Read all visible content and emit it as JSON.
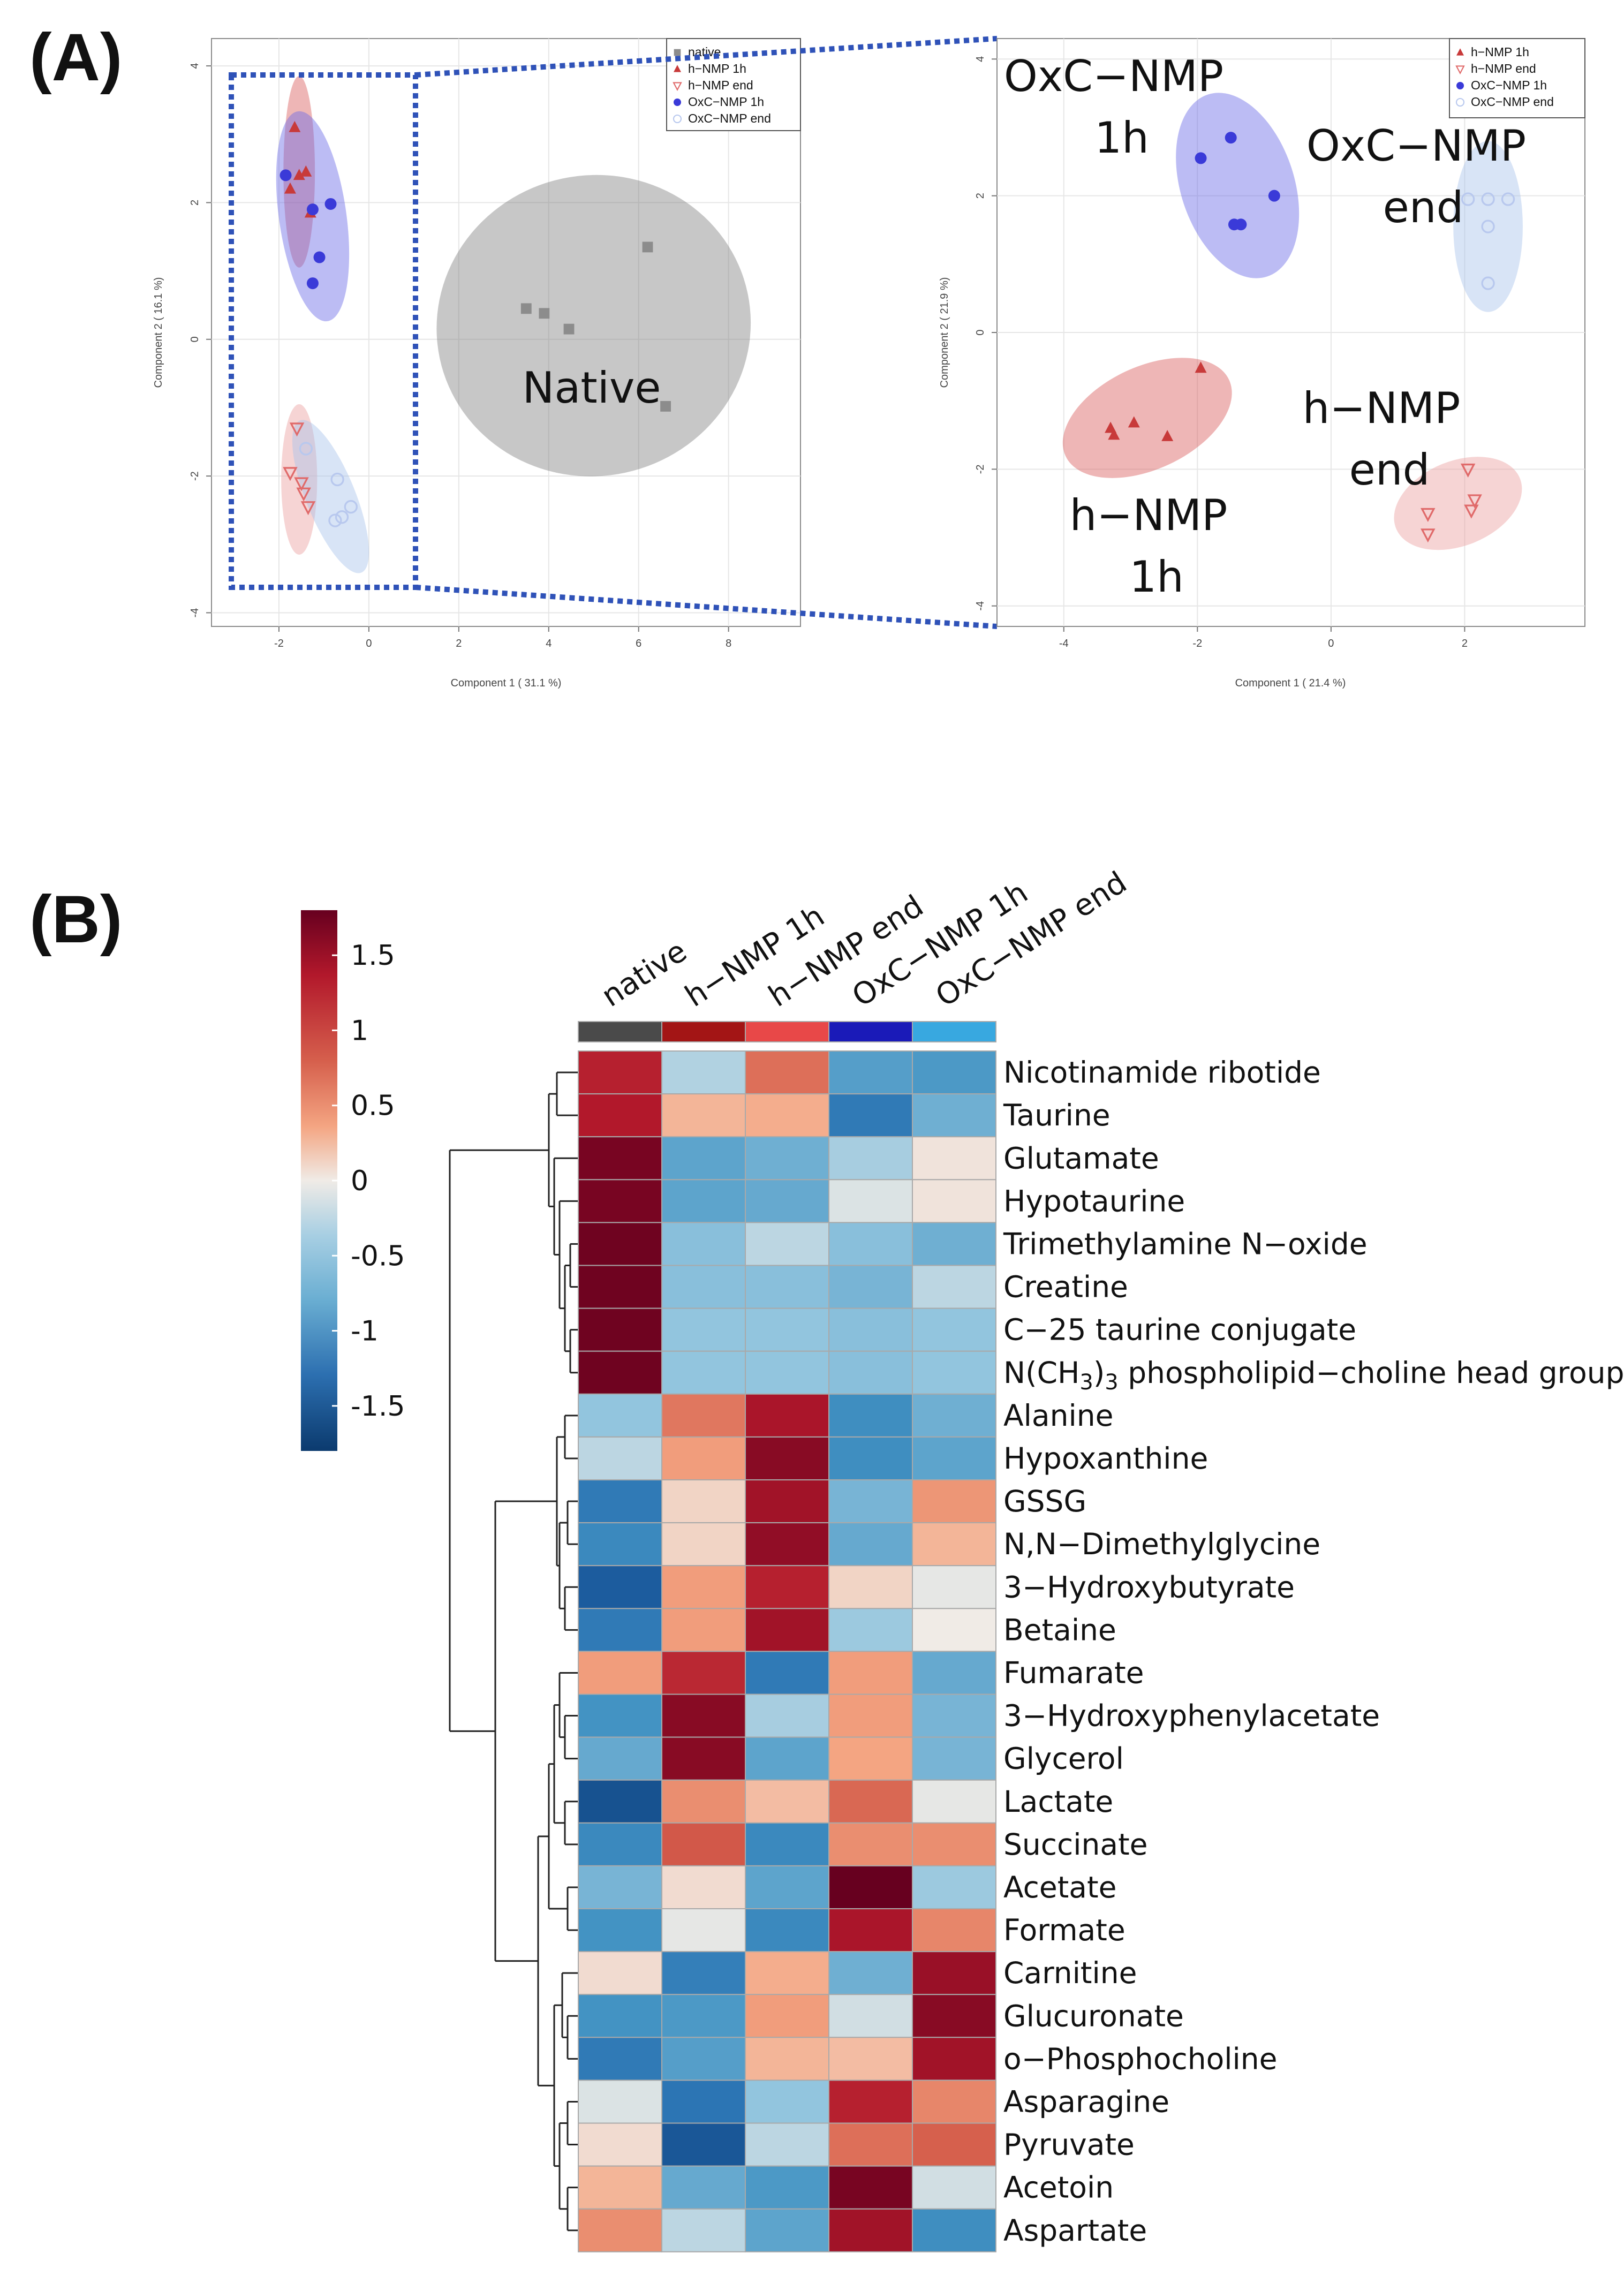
{
  "figure": {
    "label_a": "(A)",
    "label_b": "(B)"
  },
  "chart_data": [
    {
      "type": "scatter",
      "id": "pca-left",
      "xlabel": "Component 1 ( 31.1 %)",
      "ylabel": "Component 2 ( 16.1 %)",
      "xlim": [
        -3.5,
        9.6
      ],
      "ylim": [
        -4.2,
        4.4
      ],
      "xticks": [
        -2,
        0,
        2,
        4,
        6,
        8
      ],
      "yticks": [
        -4,
        -2,
        0,
        2,
        4
      ],
      "legend": [
        "native",
        "h−NMP 1h",
        "h−NMP end",
        "OxC−NMP 1h",
        "OxC−NMP end"
      ],
      "annotations": [
        "Native"
      ],
      "series": [
        {
          "name": "native",
          "color": "#8c8c8c",
          "marker": "square",
          "points": [
            [
              3.5,
              0.45
            ],
            [
              3.9,
              0.38
            ],
            [
              4.45,
              0.15
            ],
            [
              6.2,
              1.35
            ],
            [
              6.6,
              -0.98
            ]
          ]
        },
        {
          "name": "h−NMP 1h",
          "color": "#c83a3a",
          "marker": "triangle-up",
          "points": [
            [
              -1.65,
              3.1
            ],
            [
              -1.4,
              2.45
            ],
            [
              -1.75,
              2.2
            ],
            [
              -1.3,
              1.85
            ],
            [
              -1.55,
              2.4
            ]
          ]
        },
        {
          "name": "h−NMP end",
          "color": "#e06a6a",
          "marker": "triangle-down-open",
          "points": [
            [
              -1.6,
              -1.3
            ],
            [
              -1.75,
              -1.95
            ],
            [
              -1.45,
              -2.25
            ],
            [
              -1.35,
              -2.45
            ],
            [
              -1.5,
              -2.1
            ]
          ]
        },
        {
          "name": "OxC−NMP 1h",
          "color": "#3a3ad8",
          "marker": "circle",
          "points": [
            [
              -1.85,
              2.4
            ],
            [
              -1.25,
              1.9
            ],
            [
              -0.85,
              1.98
            ],
            [
              -1.1,
              1.2
            ],
            [
              -1.25,
              0.82
            ]
          ]
        },
        {
          "name": "OxC−NMP end",
          "color": "#b8c8ee",
          "marker": "circle-open",
          "points": [
            [
              -1.4,
              -1.6
            ],
            [
              -0.7,
              -2.05
            ],
            [
              -0.6,
              -2.6
            ],
            [
              -0.4,
              -2.45
            ],
            [
              -0.75,
              -2.65
            ]
          ]
        }
      ],
      "ellipses": [
        {
          "group": "native",
          "cx": 5.0,
          "cy": 0.2,
          "rx": 3.5,
          "ry": 2.2,
          "angle": -12
        },
        {
          "group": "h−NMP 1h",
          "cx": -1.55,
          "cy": 2.45,
          "rx": 0.35,
          "ry": 1.4,
          "angle": 0
        },
        {
          "group": "OxC−NMP 1h",
          "cx": -1.25,
          "cy": 1.8,
          "rx": 0.75,
          "ry": 1.55,
          "angle": -8
        },
        {
          "group": "h−NMP end",
          "cx": -1.55,
          "cy": -2.05,
          "rx": 0.4,
          "ry": 1.1,
          "angle": 0
        },
        {
          "group": "OxC−NMP end",
          "cx": -0.85,
          "cy": -2.3,
          "rx": 0.55,
          "ry": 1.2,
          "angle": -22
        }
      ]
    },
    {
      "type": "scatter",
      "id": "pca-right",
      "xlabel": "Component 1 ( 21.4 %)",
      "ylabel": "Component 2 ( 21.9 %)",
      "xlim": [
        -5.0,
        3.8
      ],
      "ylim": [
        -4.3,
        4.3
      ],
      "xticks": [
        -4,
        -2,
        0,
        2
      ],
      "yticks": [
        -4,
        -2,
        0,
        2,
        4
      ],
      "legend": [
        "h−NMP 1h",
        "h−NMP end",
        "OxC−NMP 1h",
        "OxC−NMP end"
      ],
      "annotations": [
        {
          "line1": "OxC−NMP",
          "line2": "1h"
        },
        {
          "line1": "OxC−NMP",
          "line2": "end"
        },
        {
          "line1": "h−NMP",
          "line2": "end"
        },
        {
          "line1": "h−NMP",
          "line2": "1h"
        }
      ],
      "series": [
        {
          "name": "h−NMP 1h",
          "color": "#c83a3a",
          "marker": "triangle-up",
          "points": [
            [
              -3.3,
              -1.4
            ],
            [
              -3.25,
              -1.5
            ],
            [
              -2.95,
              -1.32
            ],
            [
              -2.45,
              -1.52
            ],
            [
              -1.95,
              -0.52
            ]
          ]
        },
        {
          "name": "h−NMP end",
          "color": "#e06a6a",
          "marker": "triangle-down-open",
          "points": [
            [
              1.45,
              -2.65
            ],
            [
              1.45,
              -2.95
            ],
            [
              2.05,
              -2.0
            ],
            [
              2.15,
              -2.45
            ],
            [
              2.1,
              -2.6
            ]
          ]
        },
        {
          "name": "OxC−NMP 1h",
          "color": "#3a3ad8",
          "marker": "circle",
          "points": [
            [
              -1.95,
              2.55
            ],
            [
              -1.5,
              2.85
            ],
            [
              -1.45,
              1.58
            ],
            [
              -1.35,
              1.58
            ],
            [
              -0.85,
              2.0
            ]
          ]
        },
        {
          "name": "OxC−NMP end",
          "color": "#b8c8ee",
          "marker": "circle-open",
          "points": [
            [
              2.05,
              1.95
            ],
            [
              2.35,
              1.95
            ],
            [
              2.65,
              1.95
            ],
            [
              2.35,
              1.55
            ],
            [
              2.35,
              0.72
            ]
          ]
        }
      ],
      "ellipses": [
        {
          "group": "OxC−NMP 1h",
          "cx": -1.4,
          "cy": 2.15,
          "rx": 0.85,
          "ry": 1.4,
          "angle": -18
        },
        {
          "group": "OxC−NMP end",
          "cx": 2.35,
          "cy": 1.55,
          "rx": 0.52,
          "ry": 1.25,
          "angle": 0
        },
        {
          "group": "h−NMP 1h",
          "cx": -2.75,
          "cy": -1.25,
          "rx": 1.35,
          "ry": 0.75,
          "angle": -25
        },
        {
          "group": "h−NMP end",
          "cx": 1.9,
          "cy": -2.5,
          "rx": 1.0,
          "ry": 0.62,
          "angle": -22
        }
      ]
    },
    {
      "type": "heatmap",
      "id": "heatmap",
      "columns": [
        "native",
        "h−NMP 1h",
        "h−NMP end",
        "OxC−NMP 1h",
        "OxC−NMP end"
      ],
      "column_colors": [
        "#4a4a4a",
        "#a31515",
        "#e84848",
        "#1a1ab8",
        "#38a8e0"
      ],
      "rows": [
        "Nicotinamide ribotide",
        "Taurine",
        "Glutamate",
        "Hypotaurine",
        "Trimethylamine N−oxide",
        "Creatine",
        "C−25 taurine conjugate",
        "N(CH3)3 phospholipid−choline head group",
        "Alanine",
        "Hypoxanthine",
        "GSSG",
        "N,N−Dimethylglycine",
        "3−Hydroxybutyrate",
        "Betaine",
        "Fumarate",
        "3−Hydroxyphenylacetate",
        "Glycerol",
        "Lactate",
        "Succinate",
        "Acetate",
        "Formate",
        "Carnitine",
        "Glucuronate",
        "o−Phosphocholine",
        "Asparagine",
        "Pyruvate",
        "Acetoin",
        "Aspartate"
      ],
      "row_special_label": {
        "prefix": "N(CH",
        "sub": "3",
        "mid": ")",
        "sub2": "3",
        "suffix": " phospholipid−choline head group"
      },
      "values": [
        [
          1.3,
          -0.3,
          0.8,
          -0.8,
          -0.85
        ],
        [
          1.35,
          0.35,
          0.4,
          -1.15,
          -0.65
        ],
        [
          1.7,
          -0.75,
          -0.65,
          -0.35,
          0.05
        ],
        [
          1.7,
          -0.75,
          -0.7,
          -0.1,
          0.05
        ],
        [
          1.75,
          -0.5,
          -0.25,
          -0.5,
          -0.65
        ],
        [
          1.75,
          -0.5,
          -0.5,
          -0.6,
          -0.25
        ],
        [
          1.75,
          -0.45,
          -0.45,
          -0.5,
          -0.45
        ],
        [
          1.75,
          -0.45,
          -0.45,
          -0.5,
          -0.45
        ],
        [
          -0.45,
          0.75,
          1.4,
          -0.95,
          -0.65
        ],
        [
          -0.25,
          0.5,
          1.6,
          -0.95,
          -0.75
        ],
        [
          -1.15,
          0.15,
          1.45,
          -0.6,
          0.55
        ],
        [
          -1.0,
          0.15,
          1.55,
          -0.7,
          0.35
        ],
        [
          -1.45,
          0.5,
          1.3,
          0.15,
          -0.05
        ],
        [
          -1.15,
          0.5,
          1.45,
          -0.4,
          0.0
        ],
        [
          0.5,
          1.25,
          -1.15,
          0.5,
          -0.7
        ],
        [
          -0.9,
          1.6,
          -0.35,
          0.5,
          -0.6
        ],
        [
          -0.7,
          1.6,
          -0.75,
          0.45,
          -0.6
        ],
        [
          -1.55,
          0.6,
          0.3,
          0.85,
          -0.05
        ],
        [
          -1.0,
          0.95,
          -1.0,
          0.6,
          0.6
        ],
        [
          -0.6,
          0.1,
          -0.75,
          1.8,
          -0.4
        ],
        [
          -0.9,
          -0.05,
          -1.0,
          1.4,
          0.65
        ],
        [
          0.1,
          -1.1,
          0.4,
          -0.65,
          1.5
        ],
        [
          -0.9,
          -0.85,
          0.5,
          -0.15,
          1.6
        ],
        [
          -1.15,
          -0.8,
          0.35,
          0.3,
          1.45
        ],
        [
          -0.1,
          -1.2,
          -0.45,
          1.3,
          0.65
        ],
        [
          0.1,
          -1.5,
          -0.25,
          0.8,
          0.9
        ],
        [
          0.35,
          -0.7,
          -0.85,
          1.7,
          -0.15
        ],
        [
          0.6,
          -0.25,
          -0.75,
          1.45,
          -0.95
        ]
      ],
      "colorbar": {
        "min": -1.8,
        "max": 1.8,
        "ticks": [
          "1.5",
          "1",
          "0.5",
          "0",
          "-0.5",
          "-1",
          "-1.5"
        ]
      }
    }
  ]
}
